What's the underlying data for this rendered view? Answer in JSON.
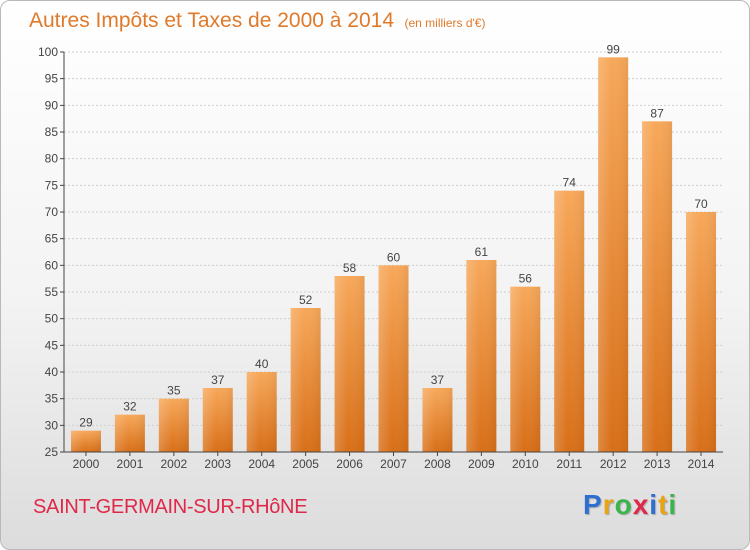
{
  "title": "Autres Impôts et Taxes de 2000 à 2014",
  "unit": "(en milliers d'€)",
  "commune": "SAINT-GERMAIN-SUR-RHôNE",
  "logo": {
    "letters": [
      "P",
      "r",
      "o",
      "x",
      "i",
      "t",
      "i"
    ],
    "colors": [
      "#2f6fd1",
      "#e9a317",
      "#3bb54a",
      "#e0284a",
      "#2f6fd1",
      "#e9a317",
      "#3bb54a"
    ]
  },
  "colors": {
    "bar_top": "#f7a85a",
    "bar_bottom": "#d86f18",
    "axis": "#444444",
    "grid": "#cfcfcf",
    "title": "#e07a2a",
    "commune": "#e0284a"
  },
  "chart_data": {
    "type": "bar",
    "title": "Autres Impôts et Taxes de 2000 à 2014",
    "subtitle": "(en milliers d'€)",
    "xlabel": "",
    "ylabel": "",
    "categories": [
      "2000",
      "2001",
      "2002",
      "2003",
      "2004",
      "2005",
      "2006",
      "2007",
      "2008",
      "2009",
      "2010",
      "2011",
      "2012",
      "2013",
      "2014"
    ],
    "values": [
      29,
      32,
      35,
      37,
      40,
      52,
      58,
      60,
      37,
      61,
      56,
      74,
      99,
      87,
      70
    ],
    "ylim": [
      25,
      100
    ],
    "yticks": [
      25,
      30,
      35,
      40,
      45,
      50,
      55,
      60,
      65,
      70,
      75,
      80,
      85,
      90,
      95,
      100
    ],
    "grid": true,
    "data_labels": true
  }
}
